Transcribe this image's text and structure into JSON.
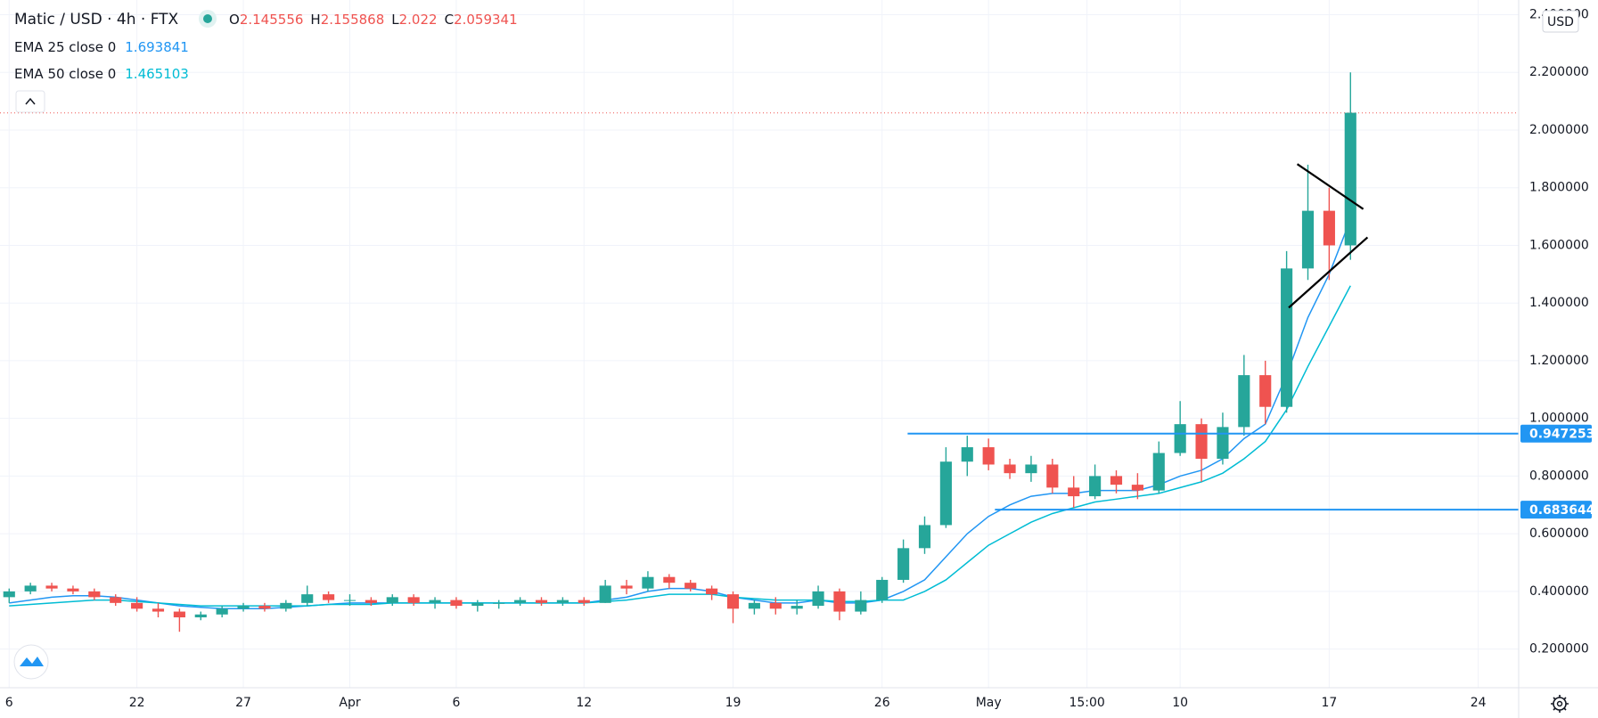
{
  "chart_data": {
    "type": "candlestick",
    "title": "Matic / USD · 4h · FTX",
    "currency": "USD",
    "ohlc_legend": [
      {
        "label": "O",
        "value": 2.145556
      },
      {
        "label": "H",
        "value": 2.155868
      },
      {
        "label": "L",
        "value": 2.022
      },
      {
        "label": "C",
        "value": 2.059341
      }
    ],
    "up_color": "#26a69a",
    "down_color": "#ef5350",
    "x": [
      0,
      1,
      2,
      3,
      4,
      5,
      6,
      7,
      8,
      9,
      10,
      11,
      12,
      13,
      14,
      15,
      16,
      17,
      18,
      19,
      20,
      21,
      22,
      23,
      24,
      25,
      26,
      27,
      28,
      29,
      30,
      31,
      32,
      33,
      34,
      35,
      36,
      37,
      38,
      39,
      40,
      41,
      42,
      43,
      44,
      45,
      46,
      47,
      48,
      49,
      50,
      51,
      52,
      53,
      54,
      55,
      56,
      57,
      58,
      59,
      60,
      61,
      62,
      63
    ],
    "open": [
      0.38,
      0.4,
      0.42,
      0.41,
      0.4,
      0.38,
      0.36,
      0.34,
      0.33,
      0.31,
      0.32,
      0.34,
      0.35,
      0.34,
      0.36,
      0.39,
      0.37,
      0.37,
      0.36,
      0.38,
      0.36,
      0.37,
      0.35,
      0.36,
      0.36,
      0.37,
      0.36,
      0.37,
      0.36,
      0.42,
      0.41,
      0.45,
      0.43,
      0.41,
      0.39,
      0.34,
      0.36,
      0.34,
      0.35,
      0.4,
      0.33,
      0.37,
      0.44,
      0.55,
      0.63,
      0.85,
      0.9,
      0.84,
      0.81,
      0.84,
      0.76,
      0.73,
      0.8,
      0.77,
      0.75,
      0.88,
      0.98,
      0.86,
      0.97,
      1.15,
      1.04,
      1.52,
      1.72,
      1.6
    ],
    "high": [
      0.41,
      0.43,
      0.43,
      0.42,
      0.41,
      0.39,
      0.38,
      0.36,
      0.34,
      0.33,
      0.35,
      0.36,
      0.36,
      0.37,
      0.42,
      0.4,
      0.39,
      0.38,
      0.39,
      0.39,
      0.38,
      0.38,
      0.37,
      0.37,
      0.38,
      0.38,
      0.38,
      0.38,
      0.44,
      0.44,
      0.47,
      0.46,
      0.44,
      0.42,
      0.4,
      0.37,
      0.38,
      0.37,
      0.42,
      0.41,
      0.4,
      0.45,
      0.58,
      0.66,
      0.9,
      0.94,
      0.93,
      0.86,
      0.87,
      0.86,
      0.8,
      0.84,
      0.82,
      0.81,
      0.92,
      1.06,
      1.0,
      1.02,
      1.22,
      1.2,
      1.58,
      1.88,
      1.8,
      2.2
    ],
    "low": [
      0.36,
      0.39,
      0.4,
      0.39,
      0.37,
      0.35,
      0.33,
      0.31,
      0.26,
      0.3,
      0.31,
      0.33,
      0.33,
      0.33,
      0.35,
      0.36,
      0.35,
      0.35,
      0.35,
      0.35,
      0.34,
      0.34,
      0.33,
      0.34,
      0.35,
      0.35,
      0.35,
      0.35,
      0.36,
      0.39,
      0.4,
      0.41,
      0.4,
      0.37,
      0.29,
      0.32,
      0.32,
      0.32,
      0.34,
      0.3,
      0.32,
      0.36,
      0.43,
      0.53,
      0.62,
      0.8,
      0.82,
      0.79,
      0.78,
      0.74,
      0.69,
      0.72,
      0.74,
      0.72,
      0.74,
      0.87,
      0.78,
      0.84,
      0.94,
      0.98,
      1.02,
      1.48,
      1.48,
      1.55
    ],
    "close": [
      0.4,
      0.42,
      0.41,
      0.4,
      0.38,
      0.36,
      0.34,
      0.33,
      0.31,
      0.32,
      0.34,
      0.35,
      0.34,
      0.36,
      0.39,
      0.37,
      0.37,
      0.36,
      0.38,
      0.36,
      0.37,
      0.35,
      0.36,
      0.36,
      0.37,
      0.36,
      0.37,
      0.36,
      0.42,
      0.41,
      0.45,
      0.43,
      0.41,
      0.39,
      0.34,
      0.36,
      0.34,
      0.35,
      0.4,
      0.33,
      0.37,
      0.44,
      0.55,
      0.63,
      0.85,
      0.9,
      0.84,
      0.81,
      0.84,
      0.76,
      0.73,
      0.8,
      0.77,
      0.75,
      0.88,
      0.98,
      0.86,
      0.97,
      1.15,
      1.04,
      1.52,
      1.72,
      1.6,
      2.06
    ],
    "overlays": [
      {
        "name": "EMA 25 close 0",
        "last_value": 1.693841,
        "color": "#2196f3",
        "values": [
          0.36,
          0.37,
          0.38,
          0.385,
          0.385,
          0.38,
          0.37,
          0.36,
          0.35,
          0.345,
          0.34,
          0.34,
          0.34,
          0.345,
          0.35,
          0.355,
          0.36,
          0.36,
          0.36,
          0.36,
          0.36,
          0.36,
          0.36,
          0.36,
          0.36,
          0.36,
          0.36,
          0.36,
          0.37,
          0.38,
          0.4,
          0.41,
          0.41,
          0.4,
          0.38,
          0.37,
          0.36,
          0.36,
          0.37,
          0.36,
          0.36,
          0.37,
          0.4,
          0.44,
          0.52,
          0.6,
          0.66,
          0.7,
          0.73,
          0.74,
          0.74,
          0.75,
          0.75,
          0.75,
          0.77,
          0.8,
          0.82,
          0.86,
          0.93,
          0.98,
          1.15,
          1.35,
          1.5,
          1.69
        ]
      },
      {
        "name": "EMA 50 close 0",
        "last_value": 1.465103,
        "color": "#00bcd4",
        "values": [
          0.35,
          0.355,
          0.36,
          0.365,
          0.37,
          0.37,
          0.365,
          0.36,
          0.355,
          0.35,
          0.35,
          0.35,
          0.35,
          0.35,
          0.35,
          0.355,
          0.355,
          0.355,
          0.36,
          0.36,
          0.36,
          0.36,
          0.36,
          0.36,
          0.36,
          0.36,
          0.36,
          0.36,
          0.365,
          0.37,
          0.38,
          0.39,
          0.39,
          0.39,
          0.38,
          0.375,
          0.37,
          0.37,
          0.37,
          0.365,
          0.365,
          0.37,
          0.37,
          0.4,
          0.44,
          0.5,
          0.56,
          0.6,
          0.64,
          0.67,
          0.69,
          0.71,
          0.72,
          0.73,
          0.74,
          0.76,
          0.78,
          0.81,
          0.86,
          0.92,
          1.03,
          1.18,
          1.32,
          1.46
        ]
      }
    ],
    "levels": [
      {
        "value": 0.947253,
        "start": 42.2,
        "color": "#2196f3"
      },
      {
        "value": 0.683644,
        "start": 46.3,
        "color": "#2196f3"
      }
    ],
    "trendlines": [
      {
        "x": [
          60.5,
          63.6
        ],
        "y": [
          1.882,
          1.726
        ],
        "color": "#000000"
      },
      {
        "x": [
          60.1,
          63.8
        ],
        "y": [
          1.384,
          1.628
        ],
        "color": "#000000"
      }
    ],
    "xlim": [
      -0.43,
      70.9
    ],
    "ylim": [
      0.066,
      2.451
    ],
    "xticks": [
      {
        "value": 0,
        "label": "6"
      },
      {
        "value": 6,
        "label": "22"
      },
      {
        "value": 11,
        "label": "27"
      },
      {
        "value": 16,
        "label": "Apr"
      },
      {
        "value": 21,
        "label": "6"
      },
      {
        "value": 27,
        "label": "12"
      },
      {
        "value": 34,
        "label": "19"
      },
      {
        "value": 41,
        "label": "26"
      },
      {
        "value": 46,
        "label": "May"
      },
      {
        "value": 50.625,
        "label": "15:00"
      },
      {
        "value": 55,
        "label": "10"
      },
      {
        "value": 62,
        "label": "17"
      },
      {
        "value": 69,
        "label": "24"
      }
    ],
    "yticks": [
      {
        "value": 0.2,
        "label": "0.200000"
      },
      {
        "value": 0.4,
        "label": "0.400000"
      },
      {
        "value": 0.6,
        "label": "0.600000"
      },
      {
        "value": 0.8,
        "label": "0.800000"
      },
      {
        "value": 1.0,
        "label": "1.000000"
      },
      {
        "value": 1.2,
        "label": "1.200000"
      },
      {
        "value": 1.4,
        "label": "1.400000"
      },
      {
        "value": 1.6,
        "label": "1.600000"
      },
      {
        "value": 1.8,
        "label": "1.800000"
      },
      {
        "value": 2.0,
        "label": "2.000000"
      },
      {
        "value": 2.2,
        "label": "2.200000"
      },
      {
        "value": 2.4,
        "label": "2.400000"
      }
    ],
    "grid": true
  }
}
